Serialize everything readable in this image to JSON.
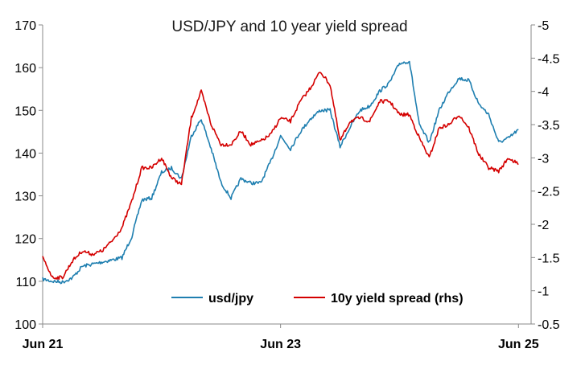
{
  "chart_data": {
    "type": "line",
    "title": "USD/JPY and 10 year yield spread",
    "xlabel": "",
    "ylabel": "",
    "x_ticks": [
      "Jun 21",
      "Jun 23",
      "Jun 25"
    ],
    "left_axis": {
      "ticks": [
        "170",
        "160",
        "150",
        "140",
        "130",
        "120",
        "110",
        "100"
      ],
      "ylim": [
        100,
        170
      ]
    },
    "right_axis": {
      "ticks": [
        "-5",
        "-4.5",
        "-4",
        "-3.5",
        "-3",
        "-2.5",
        "-2",
        "-1.5",
        "-1",
        "-0.5"
      ],
      "ylim": [
        -0.5,
        -5
      ]
    },
    "legend_position": "bottom-center",
    "grid": false,
    "series": [
      {
        "name": "usd/jpy",
        "axis": "left",
        "color": "#1f7fb0",
        "x": [
          "2021-06",
          "2021-07",
          "2021-08",
          "2021-09",
          "2021-10",
          "2021-11",
          "2021-12",
          "2022-01",
          "2022-02",
          "2022-03",
          "2022-04",
          "2022-05",
          "2022-06",
          "2022-07",
          "2022-08",
          "2022-09",
          "2022-10",
          "2022-11",
          "2022-12",
          "2023-01",
          "2023-02",
          "2023-03",
          "2023-04",
          "2023-05",
          "2023-06",
          "2023-07",
          "2023-08",
          "2023-09",
          "2023-10",
          "2023-11",
          "2023-12",
          "2024-01",
          "2024-02",
          "2024-03",
          "2024-04",
          "2024-05",
          "2024-06",
          "2024-07",
          "2024-08",
          "2024-09",
          "2024-10",
          "2024-11",
          "2024-12",
          "2025-01",
          "2025-02",
          "2025-03",
          "2025-04",
          "2025-05",
          "2025-06"
        ],
        "values": [
          110.5,
          110.0,
          109.8,
          110.8,
          113.5,
          114.0,
          114.5,
          115.0,
          115.5,
          120.5,
          129.0,
          129.5,
          135.5,
          136.5,
          134.0,
          144.0,
          148.0,
          141.0,
          133.0,
          129.5,
          134.0,
          133.0,
          133.0,
          138.0,
          144.0,
          141.0,
          145.0,
          148.0,
          150.0,
          150.0,
          141.5,
          146.0,
          150.0,
          151.0,
          154.5,
          156.5,
          161.0,
          161.5,
          146.5,
          142.5,
          150.0,
          154.5,
          157.5,
          157.0,
          151.5,
          149.0,
          142.5,
          143.5,
          145.5
        ]
      },
      {
        "name": "10y yield spread (rhs)",
        "axis": "right",
        "color": "#d40000",
        "x": [
          "2021-06",
          "2021-07",
          "2021-08",
          "2021-09",
          "2021-10",
          "2021-11",
          "2021-12",
          "2022-01",
          "2022-02",
          "2022-03",
          "2022-04",
          "2022-05",
          "2022-06",
          "2022-07",
          "2022-08",
          "2022-09",
          "2022-10",
          "2022-11",
          "2022-12",
          "2023-01",
          "2023-02",
          "2023-03",
          "2023-04",
          "2023-05",
          "2023-06",
          "2023-07",
          "2023-08",
          "2023-09",
          "2023-10",
          "2023-11",
          "2023-12",
          "2024-01",
          "2024-02",
          "2024-03",
          "2024-04",
          "2024-05",
          "2024-06",
          "2024-07",
          "2024-08",
          "2024-09",
          "2024-10",
          "2024-11",
          "2024-12",
          "2025-01",
          "2025-02",
          "2025-03",
          "2025-04",
          "2025-05",
          "2025-06"
        ],
        "values": [
          -1.5,
          -1.2,
          -1.2,
          -1.45,
          -1.6,
          -1.55,
          -1.6,
          -1.75,
          -1.95,
          -2.35,
          -2.85,
          -2.85,
          -3.0,
          -2.7,
          -2.6,
          -3.6,
          -4.0,
          -3.5,
          -3.2,
          -3.2,
          -3.4,
          -3.2,
          -3.25,
          -3.35,
          -3.6,
          -3.55,
          -3.85,
          -4.05,
          -4.3,
          -4.1,
          -3.25,
          -3.55,
          -3.6,
          -3.55,
          -3.85,
          -3.85,
          -3.65,
          -3.65,
          -3.3,
          -3.0,
          -3.45,
          -3.5,
          -3.65,
          -3.45,
          -3.05,
          -2.85,
          -2.8,
          -3.0,
          -2.9
        ]
      }
    ]
  }
}
